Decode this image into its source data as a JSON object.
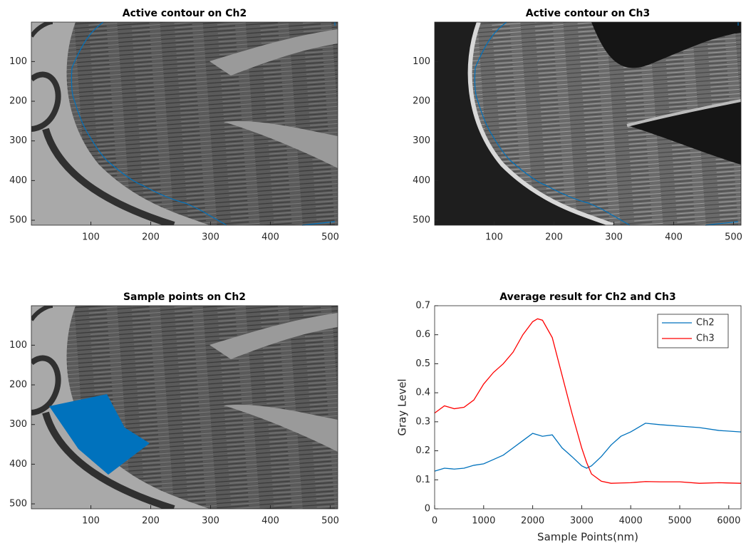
{
  "chart_data": [
    {
      "type": "image",
      "title": "Active contour on Ch2",
      "xlim": [
        0.5,
        512.5
      ],
      "ylim": [
        512.5,
        0.5
      ],
      "xticks": [
        100,
        200,
        300,
        400,
        500
      ],
      "yticks": [
        100,
        200,
        300,
        400,
        500
      ]
    },
    {
      "type": "image",
      "title": "Active contour on Ch3",
      "xlim": [
        0.5,
        512.5
      ],
      "ylim": [
        512.5,
        0.5
      ],
      "xticks": [
        100,
        200,
        300,
        400,
        500
      ],
      "yticks": [
        100,
        200,
        300,
        400,
        500
      ]
    },
    {
      "type": "image",
      "title": "Sample points on Ch2",
      "xlim": [
        0.5,
        512.5
      ],
      "ylim": [
        512.5,
        0.5
      ],
      "xticks": [
        100,
        200,
        300,
        400,
        500
      ],
      "yticks": [
        100,
        200,
        300,
        400,
        500
      ]
    },
    {
      "type": "line",
      "title": "Average result for Ch2 and Ch3",
      "xlabel": "Sample Points(nm)",
      "ylabel": "Gray Level",
      "x": [
        0,
        200,
        400,
        600,
        800,
        1000,
        1200,
        1400,
        1600,
        1800,
        2000,
        2100,
        2200,
        2400,
        2600,
        2800,
        3000,
        3100,
        3200,
        3400,
        3600,
        3800,
        4000,
        4300,
        4600,
        5000,
        5400,
        5800,
        6250
      ],
      "series": [
        {
          "name": "Ch2",
          "color": "#0072bd",
          "values": [
            0.13,
            0.14,
            0.137,
            0.14,
            0.15,
            0.155,
            0.17,
            0.185,
            0.21,
            0.235,
            0.26,
            0.255,
            0.25,
            0.255,
            0.21,
            0.18,
            0.148,
            0.14,
            0.148,
            0.18,
            0.22,
            0.25,
            0.265,
            0.295,
            0.29,
            0.285,
            0.28,
            0.27,
            0.265
          ]
        },
        {
          "name": "Ch3",
          "color": "#ff0000",
          "values": [
            0.33,
            0.355,
            0.345,
            0.35,
            0.375,
            0.43,
            0.47,
            0.5,
            0.54,
            0.6,
            0.645,
            0.655,
            0.65,
            0.59,
            0.46,
            0.33,
            0.21,
            0.16,
            0.12,
            0.095,
            0.088,
            0.089,
            0.09,
            0.094,
            0.093,
            0.093,
            0.088,
            0.09,
            0.088
          ]
        }
      ],
      "xlim": [
        0,
        6250
      ],
      "ylim": [
        0,
        0.7
      ],
      "xticks": [
        0,
        1000,
        2000,
        3000,
        4000,
        5000,
        6000
      ],
      "yticks": [
        0,
        0.1,
        0.2,
        0.3,
        0.4,
        0.5,
        0.6,
        0.7
      ],
      "legend": "upper right"
    }
  ]
}
